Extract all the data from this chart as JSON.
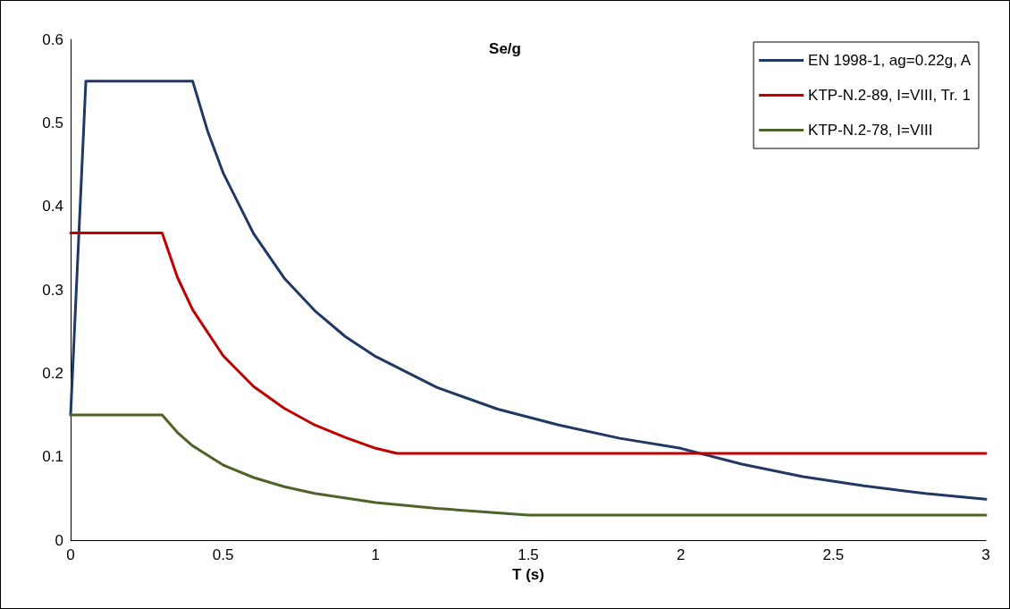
{
  "chart_data": {
    "type": "line",
    "title": "Se/g",
    "xlabel": "T (s)",
    "xlim": [
      0,
      3
    ],
    "xticks": [
      0,
      0.5,
      1,
      1.5,
      2,
      2.5,
      3
    ],
    "ylim": [
      0,
      0.6
    ],
    "yticks": [
      0,
      0.1,
      0.2,
      0.3,
      0.4,
      0.5,
      0.6
    ],
    "grid": false,
    "legend": "top right",
    "marker": "none",
    "line_style": "solid",
    "series": [
      {
        "name": "EN 1998-1, ag=0.22g, A",
        "color": "#203864",
        "x": [
          0,
          0.05,
          0.4,
          0.45,
          0.5,
          0.6,
          0.7,
          0.8,
          0.9,
          1.0,
          1.2,
          1.4,
          1.6,
          1.8,
          2.0,
          2.2,
          2.4,
          2.6,
          2.8,
          3.0
        ],
        "values": [
          0.15,
          0.55,
          0.55,
          0.489,
          0.44,
          0.367,
          0.314,
          0.275,
          0.244,
          0.22,
          0.183,
          0.157,
          0.138,
          0.122,
          0.11,
          0.091,
          0.076,
          0.065,
          0.056,
          0.049
        ]
      },
      {
        "name": "KTP-N.2-89, I=VIII, Tr. 1",
        "color": "#c00000",
        "x": [
          0,
          0.3,
          0.35,
          0.4,
          0.5,
          0.6,
          0.7,
          0.8,
          0.9,
          1.0,
          1.07,
          3.0
        ],
        "values": [
          0.368,
          0.368,
          0.315,
          0.276,
          0.221,
          0.184,
          0.158,
          0.138,
          0.123,
          0.11,
          0.104,
          0.104
        ]
      },
      {
        "name": "KTP-N.2-78, I=VIII",
        "color": "#4f6228",
        "x": [
          0,
          0.3,
          0.35,
          0.4,
          0.5,
          0.6,
          0.7,
          0.8,
          1.0,
          1.2,
          1.5,
          3.0
        ],
        "values": [
          0.15,
          0.15,
          0.129,
          0.113,
          0.09,
          0.075,
          0.064,
          0.056,
          0.045,
          0.038,
          0.03,
          0.03
        ]
      }
    ]
  }
}
